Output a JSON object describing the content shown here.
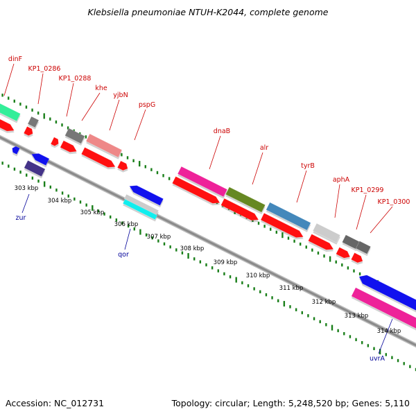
{
  "title": "Klebsiella pneumoniae NTUH-K2044, complete genome",
  "footer": {
    "accession": "Accession: NC_012731",
    "summary": "Topology: circular; Length: 5,248,520 bp; Genes: 5,110"
  },
  "colors": {
    "backbone": "#8a8a8a",
    "tick_marks": "#1a7f1a",
    "label_top": "#cc0000",
    "label_bottom": "#000099",
    "cds": "#ff1010"
  },
  "ruler": {
    "unit": "kbp",
    "ticks": [
      {
        "label": "303 kbp"
      },
      {
        "label": "304 kbp"
      },
      {
        "label": "305 kbp"
      },
      {
        "label": "306 kbp"
      },
      {
        "label": "307 kbp"
      },
      {
        "label": "308 kbp"
      },
      {
        "label": "309 kbp"
      },
      {
        "label": "310 kbp"
      },
      {
        "label": "311 kbp"
      },
      {
        "label": "312 kbp"
      },
      {
        "label": "313 kbp"
      },
      {
        "label": "314 kbp"
      }
    ]
  },
  "genes_top": [
    {
      "name": "dinF",
      "color": "#33ee99"
    },
    {
      "name": "KP1_0286",
      "color": "#777777"
    },
    {
      "name": "KP1_0288",
      "color": "#777777"
    },
    {
      "name": "khe",
      "color": "#ee8888"
    },
    {
      "name": "yjbN",
      "color": "#ee8888"
    },
    {
      "name": "pspG",
      "color": "#ff1010"
    },
    {
      "name": "dnaB",
      "color": "#ee2299"
    },
    {
      "name": "alr",
      "color": "#668822"
    },
    {
      "name": "tyrB",
      "color": "#4488bb"
    },
    {
      "name": "aphA",
      "color": "#cccccc"
    },
    {
      "name": "KP1_0299",
      "color": "#666666"
    },
    {
      "name": "KP1_0300",
      "color": "#666666"
    }
  ],
  "genes_bottom": [
    {
      "name": "zur",
      "color": "#1111ee"
    },
    {
      "name": "qor",
      "color": "#1111ee"
    },
    {
      "name": "uvrA",
      "color": "#1111ee"
    }
  ]
}
